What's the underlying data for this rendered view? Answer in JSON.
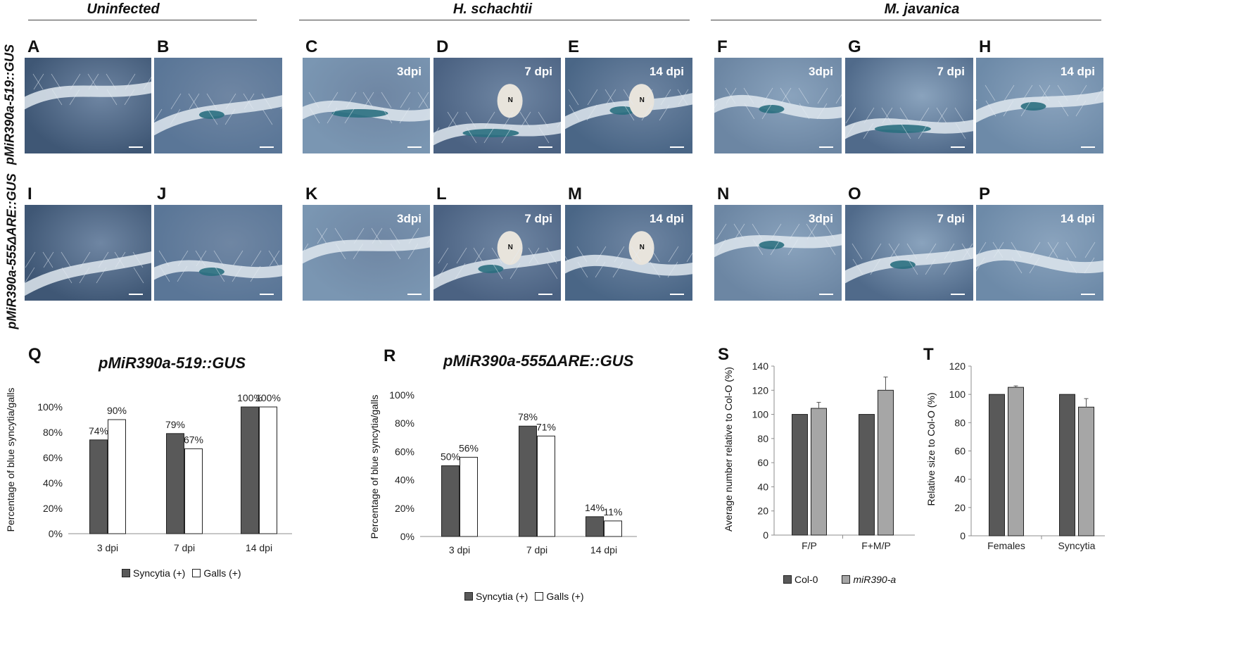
{
  "headers": {
    "uninfected": "Uninfected",
    "hs": "H. schachtii",
    "mj": "M. javanica"
  },
  "row_labels": {
    "top": "pMiR390a-519::GUS",
    "bottom": "pMiR390a-555ΔARE::GUS"
  },
  "panels": [
    {
      "id": "A",
      "dpi": "",
      "n": ""
    },
    {
      "id": "B",
      "dpi": "",
      "n": ""
    },
    {
      "id": "C",
      "dpi": "3dpi",
      "n": ""
    },
    {
      "id": "D",
      "dpi": "7 dpi",
      "n": "N"
    },
    {
      "id": "E",
      "dpi": "14 dpi",
      "n": "N"
    },
    {
      "id": "F",
      "dpi": "3dpi",
      "n": ""
    },
    {
      "id": "G",
      "dpi": "7 dpi",
      "n": ""
    },
    {
      "id": "H",
      "dpi": "14 dpi",
      "n": ""
    },
    {
      "id": "I",
      "dpi": "",
      "n": ""
    },
    {
      "id": "J",
      "dpi": "",
      "n": ""
    },
    {
      "id": "K",
      "dpi": "3dpi",
      "n": ""
    },
    {
      "id": "L",
      "dpi": "7 dpi",
      "n": "N"
    },
    {
      "id": "M",
      "dpi": "14 dpi",
      "n": "N"
    },
    {
      "id": "N",
      "dpi": "3dpi",
      "n": ""
    },
    {
      "id": "O",
      "dpi": "7 dpi",
      "n": ""
    },
    {
      "id": "P",
      "dpi": "14 dpi",
      "n": ""
    }
  ],
  "chart_labels": {
    "Q": "Q",
    "R": "R",
    "S": "S",
    "T": "T"
  },
  "chart_data": [
    {
      "panel": "Q",
      "type": "bar",
      "title": "pMiR390a-519::GUS",
      "ylabel": "Percentage of blue syncytia/galls",
      "categories": [
        "3 dpi",
        "7 dpi",
        "14 dpi"
      ],
      "yticks": [
        "0%",
        "20%",
        "40%",
        "60%",
        "80%",
        "100%"
      ],
      "ylim": [
        0,
        100
      ],
      "series": [
        {
          "name": "Syncytia (+)",
          "values": [
            74,
            79,
            100
          ],
          "labels": [
            "74%",
            "79%",
            "100%"
          ],
          "color": "#595959"
        },
        {
          "name": "Galls (+)",
          "values": [
            90,
            67,
            100
          ],
          "labels": [
            "90%",
            "67%",
            "100%"
          ],
          "color": "#ffffff"
        }
      ],
      "legend": "bottom"
    },
    {
      "panel": "R",
      "type": "bar",
      "title": "pMiR390a-555ΔARE::GUS",
      "ylabel": "Percentage of blue syncytia/galls",
      "categories": [
        "3 dpi",
        "7 dpi",
        "14 dpi"
      ],
      "yticks": [
        "0%",
        "20%",
        "40%",
        "60%",
        "80%",
        "100%"
      ],
      "ylim": [
        0,
        100
      ],
      "series": [
        {
          "name": "Syncytia (+)",
          "values": [
            50,
            78,
            14
          ],
          "labels": [
            "50%",
            "78%",
            "14%"
          ],
          "color": "#595959"
        },
        {
          "name": "Galls (+)",
          "values": [
            56,
            71,
            11
          ],
          "labels": [
            "56%",
            "71%",
            "11%"
          ],
          "color": "#ffffff"
        }
      ],
      "legend": "bottom"
    },
    {
      "panel": "S",
      "type": "bar",
      "title": "",
      "ylabel": "Average number relative to Col-O (%)",
      "categories": [
        "F/P",
        "F+M/P"
      ],
      "yticks": [
        "0",
        "20",
        "40",
        "60",
        "80",
        "100",
        "120",
        "140"
      ],
      "ylim": [
        0,
        140
      ],
      "series": [
        {
          "name": "Col-0",
          "values": [
            100,
            100
          ],
          "errors": [
            0,
            0
          ],
          "color": "#595959"
        },
        {
          "name": "miR390-a",
          "values": [
            105,
            120
          ],
          "errors": [
            5,
            11
          ],
          "color": "#a6a6a6"
        }
      ],
      "legend": "bottom"
    },
    {
      "panel": "T",
      "type": "bar",
      "title": "",
      "ylabel": "Relative size to Col-O (%)",
      "categories": [
        "Females",
        "Syncytia"
      ],
      "yticks": [
        "0",
        "20",
        "40",
        "60",
        "80",
        "100",
        "120"
      ],
      "ylim": [
        0,
        120
      ],
      "series": [
        {
          "name": "Col-0",
          "values": [
            100,
            100
          ],
          "errors": [
            0,
            0
          ],
          "color": "#595959"
        },
        {
          "name": "miR390-a",
          "values": [
            105,
            91
          ],
          "errors": [
            1,
            6
          ],
          "color": "#a6a6a6"
        }
      ]
    }
  ]
}
